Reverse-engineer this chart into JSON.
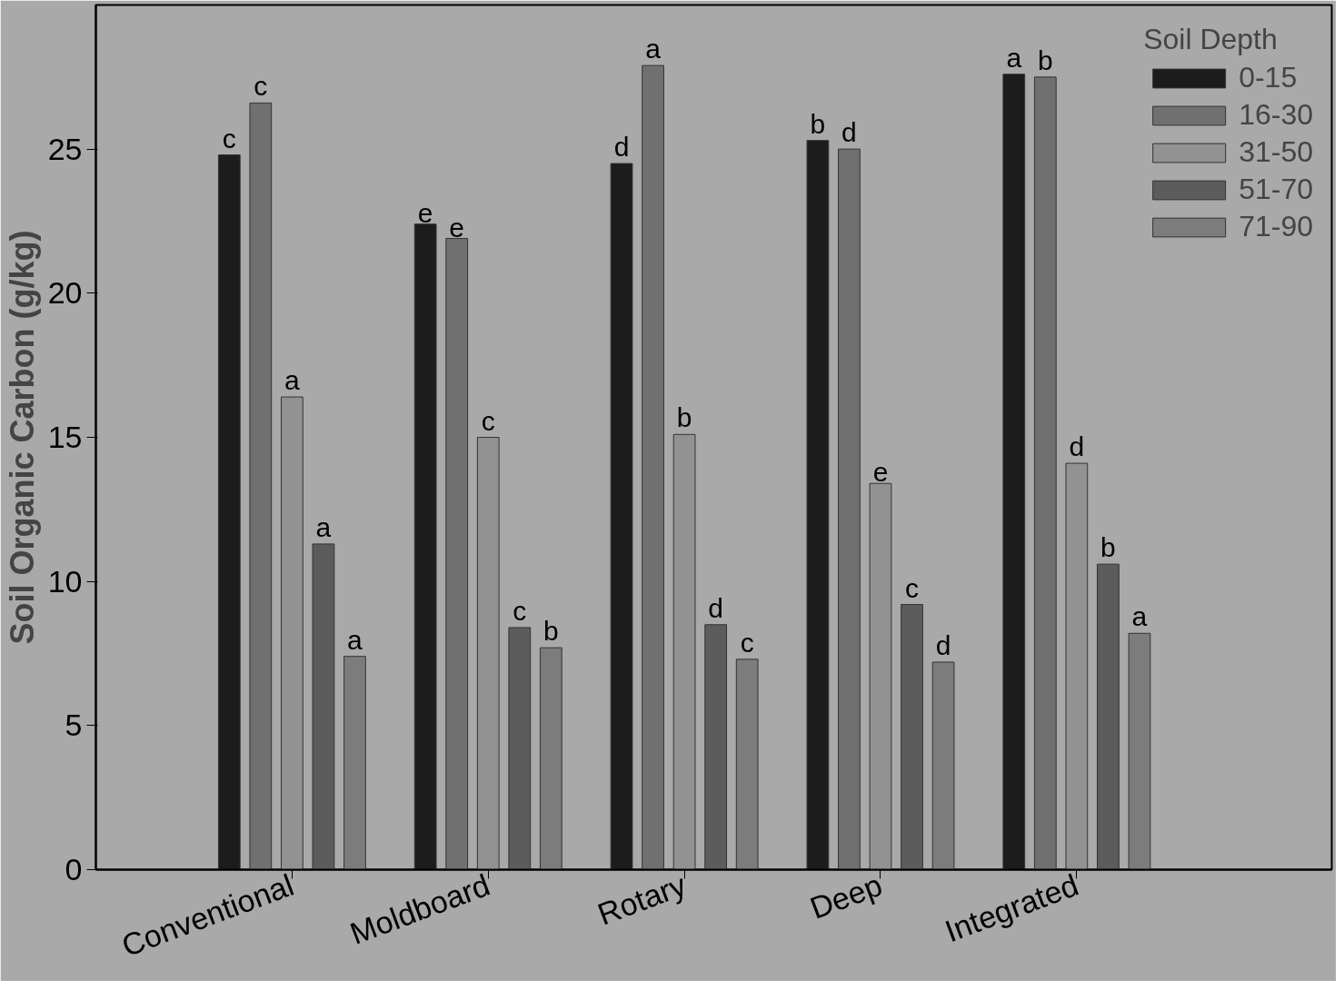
{
  "chart_data": {
    "type": "bar",
    "ylabel": "Soil Organic Carbon (g/kg)",
    "legend_title": "Soil Depth",
    "legend": "top right",
    "grid": false,
    "categories": [
      "Conventional",
      "Moldboard",
      "Rotary",
      "Deep",
      "Integrated"
    ],
    "ylim": [
      0,
      30
    ],
    "yticks": [
      0,
      5,
      10,
      15,
      20,
      25
    ],
    "series": [
      {
        "name": "0-15",
        "color": "#1c1c1c",
        "values": [
          24.8,
          22.4,
          24.5,
          25.3,
          27.6
        ],
        "value_labels": [
          "c",
          "e",
          "d",
          "b",
          "a"
        ]
      },
      {
        "name": "16-30",
        "color": "#707070",
        "values": [
          26.6,
          21.9,
          27.9,
          25.0,
          27.5
        ],
        "value_labels": [
          "c",
          "e",
          "a",
          "d",
          "b"
        ]
      },
      {
        "name": "31-50",
        "color": "#929292",
        "values": [
          16.4,
          15.0,
          15.1,
          13.4,
          14.1
        ],
        "value_labels": [
          "a",
          "c",
          "b",
          "e",
          "d"
        ]
      },
      {
        "name": "51-70",
        "color": "#5c5c5c",
        "values": [
          11.3,
          8.4,
          8.5,
          9.2,
          10.6
        ],
        "value_labels": [
          "a",
          "c",
          "d",
          "c",
          "b"
        ]
      },
      {
        "name": "71-90",
        "color": "#7c7c7c",
        "values": [
          7.4,
          7.7,
          7.3,
          7.2,
          8.2
        ],
        "value_labels": [
          "a",
          "b",
          "c",
          "d",
          "a"
        ]
      }
    ]
  }
}
